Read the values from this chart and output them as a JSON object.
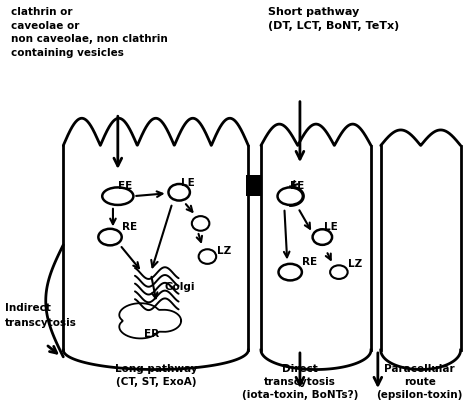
{
  "background": "#ffffff",
  "labels": {
    "top_left": "clathrin or\ncaveolae or\nnon caveolae, non clathrin\ncontaining vesicles",
    "top_right": "Short pathway\n(DT, LCT, BoNT, TeTx)",
    "bottom_left_cell": "Long pathway\n(CT, ST, ExoA)",
    "bottom_center": "Direct\ntranscytosis\n(iota-toxin, BoNTs?)",
    "bottom_right": "Paracellular\nroute\n(epsilon-toxin)",
    "indirect_line1": "Indirect",
    "indirect_line2": "transcytosis"
  },
  "cell_lw": 2.0,
  "organelle_lw": 1.8,
  "arrow_lw_small": 1.5,
  "arrow_lw_large": 2.0
}
